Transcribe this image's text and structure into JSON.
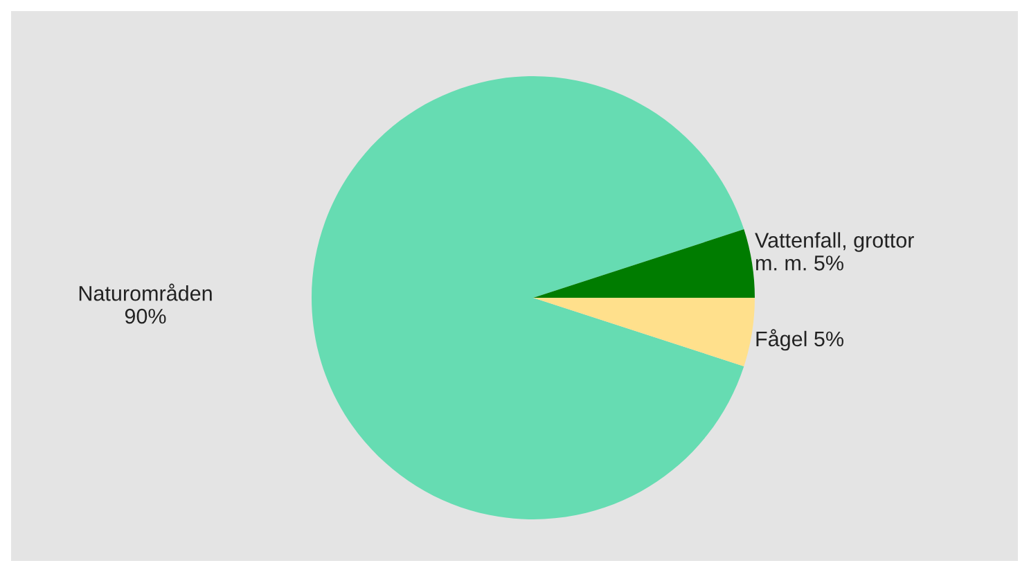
{
  "chart_data": {
    "type": "pie",
    "categories": [
      "Naturområden",
      "Vattenfall, grottor\nm. m.",
      "Fågel"
    ],
    "values": [
      90,
      5,
      5
    ],
    "value_labels": [
      "90%",
      "5%",
      "5%"
    ],
    "colors": [
      "#66dcb2",
      "#007c00",
      "#ffe08c"
    ]
  }
}
